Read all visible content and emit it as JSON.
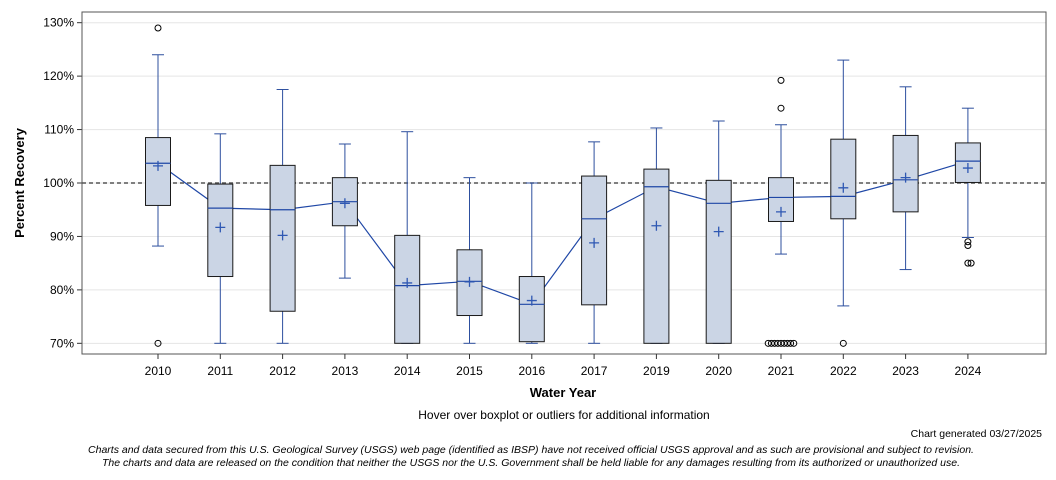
{
  "chart_data": {
    "type": "boxplot",
    "title": "",
    "xlabel": "Water Year",
    "ylabel": "Percent Recovery",
    "ylim": [
      68,
      132
    ],
    "yticks": [
      70,
      80,
      90,
      100,
      110,
      120,
      130
    ],
    "ytick_labels": [
      "70%",
      "80%",
      "90%",
      "100%",
      "110%",
      "120%",
      "130%"
    ],
    "reference_line": 100,
    "grid": true,
    "categories": [
      "2010",
      "2011",
      "2012",
      "2013",
      "2014",
      "2015",
      "2016",
      "2017",
      "2019",
      "2020",
      "2021",
      "2022",
      "2023",
      "2024"
    ],
    "boxes": [
      {
        "year": "2010",
        "whisker_low": 88.2,
        "q1": 95.8,
        "median": 103.7,
        "q3": 108.5,
        "whisker_high": 124.0,
        "mean": 103.2,
        "outliers": [
          129.0,
          70.0
        ]
      },
      {
        "year": "2011",
        "whisker_low": 70.0,
        "q1": 82.5,
        "median": 95.3,
        "q3": 99.8,
        "whisker_high": 109.2,
        "mean": 91.7,
        "outliers": []
      },
      {
        "year": "2012",
        "whisker_low": 70.0,
        "q1": 76.0,
        "median": 95.0,
        "q3": 103.3,
        "whisker_high": 117.5,
        "mean": 90.2,
        "outliers": []
      },
      {
        "year": "2013",
        "whisker_low": 82.2,
        "q1": 92.0,
        "median": 96.5,
        "q3": 101.0,
        "whisker_high": 107.3,
        "mean": 96.2,
        "outliers": []
      },
      {
        "year": "2014",
        "whisker_low": 70.0,
        "q1": 70.0,
        "median": 80.8,
        "q3": 90.2,
        "whisker_high": 109.6,
        "mean": 81.3,
        "outliers": []
      },
      {
        "year": "2015",
        "whisker_low": 70.0,
        "q1": 75.2,
        "median": 81.6,
        "q3": 87.5,
        "whisker_high": 101.0,
        "mean": 81.5,
        "outliers": []
      },
      {
        "year": "2016",
        "whisker_low": 70.0,
        "q1": 70.3,
        "median": 77.3,
        "q3": 82.5,
        "whisker_high": 100.0,
        "mean": 78.0,
        "outliers": []
      },
      {
        "year": "2017",
        "whisker_low": 70.0,
        "q1": 77.2,
        "median": 93.3,
        "q3": 101.3,
        "whisker_high": 107.7,
        "mean": 88.8,
        "outliers": []
      },
      {
        "year": "2019",
        "whisker_low": 70.0,
        "q1": 70.0,
        "median": 99.3,
        "q3": 102.6,
        "whisker_high": 110.3,
        "mean": 92.0,
        "outliers": []
      },
      {
        "year": "2020",
        "whisker_low": 70.0,
        "q1": 70.0,
        "median": 96.2,
        "q3": 100.5,
        "whisker_high": 111.6,
        "mean": 90.9,
        "outliers": []
      },
      {
        "year": "2021",
        "whisker_low": 86.7,
        "q1": 92.8,
        "median": 97.3,
        "q3": 101.0,
        "whisker_high": 110.9,
        "mean": 94.6,
        "outliers": [
          119.2,
          114.0,
          70.0,
          70.0,
          70.0,
          70.0,
          70.0,
          70.0,
          70.0,
          70.0,
          70.0
        ]
      },
      {
        "year": "2022",
        "whisker_low": 77.0,
        "q1": 93.3,
        "median": 97.5,
        "q3": 108.2,
        "whisker_high": 123.0,
        "mean": 99.1,
        "outliers": [
          70.0
        ]
      },
      {
        "year": "2023",
        "whisker_low": 83.8,
        "q1": 94.6,
        "median": 100.6,
        "q3": 108.9,
        "whisker_high": 118.0,
        "mean": 101.0,
        "outliers": []
      },
      {
        "year": "2024",
        "whisker_low": 89.8,
        "q1": 100.1,
        "median": 104.1,
        "q3": 107.5,
        "whisker_high": 114.0,
        "mean": 102.8,
        "outliers": [
          89.0,
          88.3,
          85.0,
          85.0
        ]
      }
    ]
  },
  "colors": {
    "box_fill": "#cbd5e5",
    "box_stroke": "#1a1a1a",
    "whisker": "#2d4f9e",
    "median_line": "#1f47a6",
    "mean_marker": "#2f58b3",
    "grid": "#e5e5e5",
    "reference": "#555555"
  },
  "footer": {
    "hover_note": "Hover over boxplot or outliers for additional information",
    "generated": "Chart generated 03/27/2025",
    "disclaimer_line1": "Charts and data secured from this U.S. Geological Survey (USGS) web page (identified as IBSP) have not received official USGS approval and as such are provisional and subject to revision.",
    "disclaimer_line2": "The charts and data are released on the condition that neither the USGS nor the U.S. Government shall be held liable for any damages resulting from its authorized or unauthorized use."
  }
}
